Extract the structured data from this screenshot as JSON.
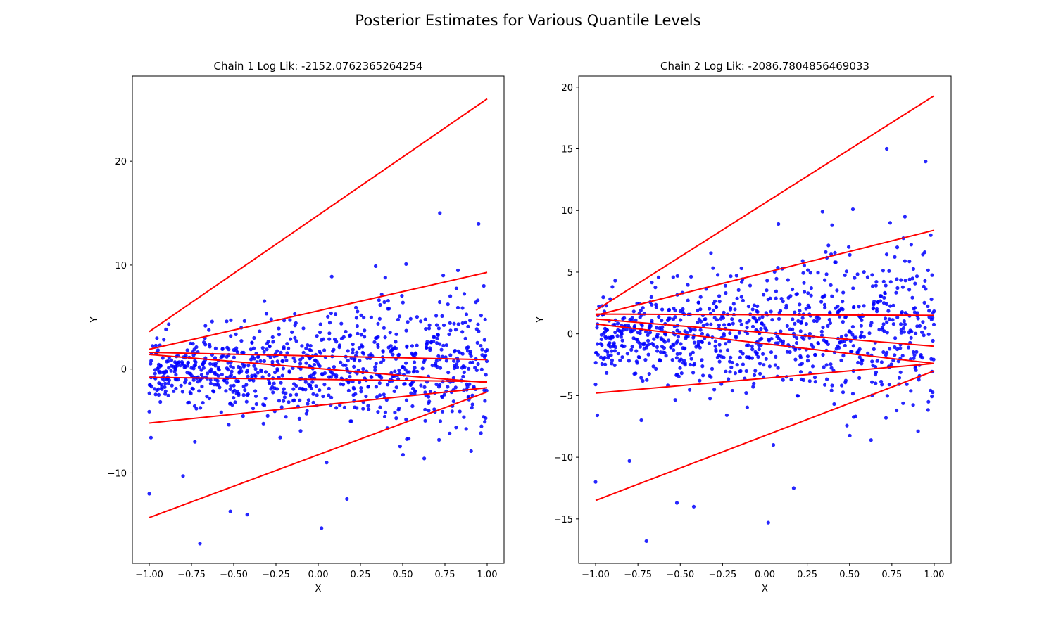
{
  "figure": {
    "suptitle": "Posterior Estimates for Various Quantile Levels"
  },
  "colors": {
    "points": "#0000ff",
    "lines": "#ff0000"
  },
  "chart_data": [
    {
      "type": "scatter",
      "title": "Chain 1 Log Lik: -2152.0762365264254",
      "xlabel": "X",
      "ylabel": "Y",
      "xlim": [
        -1.1,
        1.1
      ],
      "ylim": [
        -18.7,
        28.2
      ],
      "xticks": [
        -1.0,
        -0.75,
        -0.5,
        -0.25,
        0.0,
        0.25,
        0.5,
        0.75,
        1.0
      ],
      "xtick_labels": [
        "−1.00",
        "−0.75",
        "−0.50",
        "−0.25",
        "0.00",
        "0.25",
        "0.50",
        "0.75",
        "1.00"
      ],
      "yticks": [
        -10,
        0,
        10,
        20
      ],
      "ytick_labels": [
        "−10",
        "0",
        "10",
        "20"
      ],
      "grid": false,
      "series": [
        {
          "kind": "points",
          "seed": 7,
          "x": [
            0.72,
            -0.42,
            0.02,
            -0.52,
            -0.7,
            -1.0,
            -0.8,
            0.08,
            0.74,
            0.98,
            0.52,
            0.34,
            0.17,
            0.05,
            -0.73,
            -0.99,
            -1.0
          ],
          "y": [
            15.0,
            -14.0,
            -15.3,
            -13.7,
            -16.8,
            -12.0,
            -10.3,
            8.9,
            9.0,
            8.0,
            10.1,
            9.9,
            -12.5,
            -9.0,
            -7.0,
            -6.6,
            -4.1
          ]
        },
        {
          "kind": "line",
          "x": [
            -1.0,
            1.0
          ],
          "y": [
            3.6,
            26.0
          ]
        },
        {
          "kind": "line",
          "x": [
            -1.0,
            1.0
          ],
          "y": [
            1.9,
            9.3
          ]
        },
        {
          "kind": "line",
          "x": [
            -1.0,
            1.0
          ],
          "y": [
            1.6,
            0.9
          ]
        },
        {
          "kind": "line",
          "x": [
            -1.0,
            1.0
          ],
          "y": [
            1.4,
            -1.3
          ]
        },
        {
          "kind": "line",
          "x": [
            -1.0,
            1.0
          ],
          "y": [
            -0.8,
            -1.2
          ]
        },
        {
          "kind": "line",
          "x": [
            -1.0,
            1.0
          ],
          "y": [
            -5.2,
            -1.8
          ]
        },
        {
          "kind": "line",
          "x": [
            -1.0,
            1.0
          ],
          "y": [
            -14.3,
            -2.2
          ]
        }
      ]
    },
    {
      "type": "scatter",
      "title": "Chain 2 Log Lik: -2086.7804856469033",
      "xlabel": "X",
      "ylabel": "Y",
      "xlim": [
        -1.1,
        1.1
      ],
      "ylim": [
        -18.6,
        20.9
      ],
      "xticks": [
        -1.0,
        -0.75,
        -0.5,
        -0.25,
        0.0,
        0.25,
        0.5,
        0.75,
        1.0
      ],
      "xtick_labels": [
        "−1.00",
        "−0.75",
        "−0.50",
        "−0.25",
        "0.00",
        "0.25",
        "0.50",
        "0.75",
        "1.00"
      ],
      "yticks": [
        -15,
        -10,
        -5,
        0,
        5,
        10,
        15,
        20
      ],
      "ytick_labels": [
        "−15",
        "−10",
        "−5",
        "0",
        "5",
        "10",
        "15",
        "20"
      ],
      "grid": false,
      "series": [
        {
          "kind": "points",
          "seed": 7,
          "x": [
            0.72,
            -0.42,
            0.02,
            -0.52,
            -0.7,
            -1.0,
            -0.8,
            0.08,
            0.74,
            0.98,
            0.52,
            0.34,
            0.17,
            0.05,
            -0.73,
            -0.99,
            -1.0
          ],
          "y": [
            15.0,
            -14.0,
            -15.3,
            -13.7,
            -16.8,
            -12.0,
            -10.3,
            8.9,
            9.0,
            8.0,
            10.1,
            9.9,
            -12.5,
            -9.0,
            -7.0,
            -6.6,
            -4.1
          ]
        },
        {
          "kind": "line",
          "x": [
            -1.0,
            1.0
          ],
          "y": [
            1.9,
            19.3
          ]
        },
        {
          "kind": "line",
          "x": [
            -1.0,
            1.0
          ],
          "y": [
            1.5,
            8.4
          ]
        },
        {
          "kind": "line",
          "x": [
            -1.0,
            1.0
          ],
          "y": [
            1.6,
            1.5
          ]
        },
        {
          "kind": "line",
          "x": [
            -1.0,
            1.0
          ],
          "y": [
            1.2,
            -1.0
          ]
        },
        {
          "kind": "line",
          "x": [
            -1.0,
            1.0
          ],
          "y": [
            0.8,
            -2.4
          ]
        },
        {
          "kind": "line",
          "x": [
            -1.0,
            1.0
          ],
          "y": [
            -4.8,
            -2.4
          ]
        },
        {
          "kind": "line",
          "x": [
            -1.0,
            1.0
          ],
          "y": [
            -13.5,
            -3.0
          ]
        }
      ]
    }
  ]
}
